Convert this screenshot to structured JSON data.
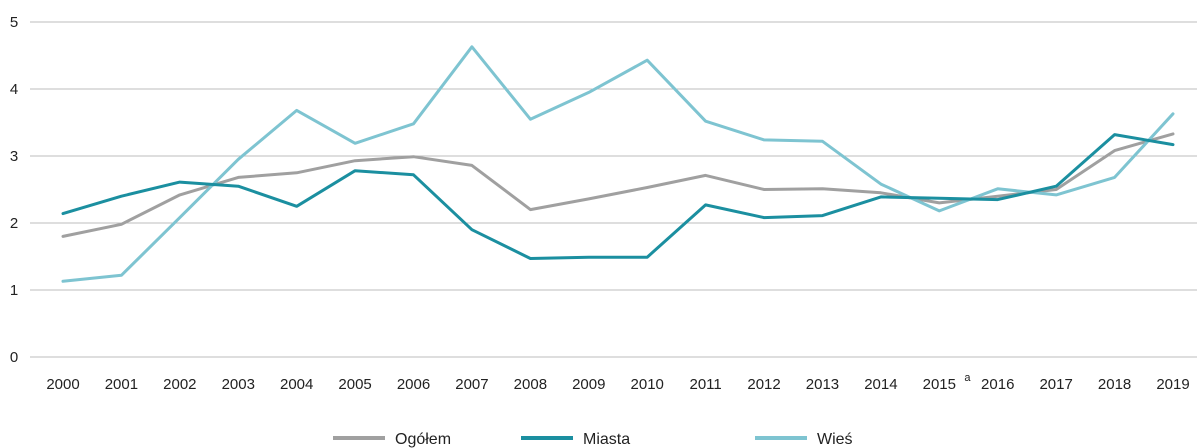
{
  "chart_data": {
    "type": "line",
    "title": "",
    "xlabel": "",
    "ylabel": "",
    "x": [
      "2000",
      "2001",
      "2002",
      "2003",
      "2004",
      "2005",
      "2006",
      "2007",
      "2008",
      "2009",
      "2010",
      "2011",
      "2012",
      "2013",
      "2014",
      "2015",
      "2016",
      "2017",
      "2018",
      "2019"
    ],
    "x_tick_labels": [
      "2000",
      "2001",
      "2002",
      "2003",
      "2004",
      "2005",
      "2006",
      "2007",
      "2008",
      "2009",
      "2010",
      "2011",
      "2012",
      "2013",
      "2014",
      "2015",
      "2016",
      "2017",
      "2018",
      "2019"
    ],
    "x_tick_superscripts": {
      "15": "a"
    },
    "ylim": [
      0,
      5
    ],
    "yticks": [
      0,
      1,
      2,
      3,
      4,
      5
    ],
    "grid": true,
    "legend_position": "bottom",
    "series": [
      {
        "name": "Ogółem",
        "color": "#a0a0a0",
        "values": [
          1.8,
          1.98,
          2.42,
          2.68,
          2.75,
          2.93,
          2.99,
          2.86,
          2.2,
          2.36,
          2.53,
          2.71,
          2.5,
          2.51,
          2.45,
          2.3,
          2.4,
          2.5,
          3.08,
          3.33
        ]
      },
      {
        "name": "Miasta",
        "color": "#1b8fa0",
        "values": [
          2.14,
          2.4,
          2.61,
          2.55,
          2.25,
          2.78,
          2.72,
          1.9,
          1.47,
          1.49,
          1.49,
          2.27,
          2.08,
          2.11,
          2.39,
          2.37,
          2.35,
          2.55,
          3.32,
          3.17
        ]
      },
      {
        "name": "Wieś",
        "color": "#7ec4d1",
        "values": [
          1.13,
          1.22,
          2.08,
          2.95,
          3.68,
          3.19,
          3.48,
          4.63,
          3.55,
          3.95,
          4.43,
          3.52,
          3.24,
          3.22,
          2.58,
          2.18,
          2.51,
          2.42,
          2.68,
          3.63
        ]
      }
    ]
  }
}
